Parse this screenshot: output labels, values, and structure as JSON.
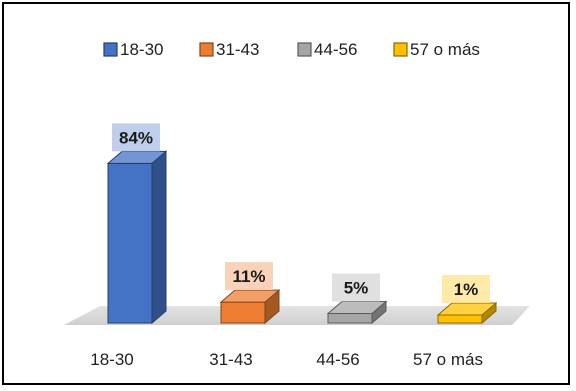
{
  "chart_data": {
    "type": "bar",
    "categories": [
      "18-30",
      "31-43",
      "44-56",
      "57 o más"
    ],
    "values": [
      84,
      11,
      5,
      1
    ],
    "data_labels": [
      "84%",
      "11%",
      "5%",
      "1%"
    ],
    "title": "",
    "xlabel": "",
    "ylabel": "",
    "ylim": [
      0,
      100
    ],
    "grid": false,
    "legend_position": "top",
    "colors": [
      "#4472C4",
      "#ED7D31",
      "#A5A5A5",
      "#FFC000"
    ],
    "series": [
      {
        "values": [
          84,
          11,
          5,
          1
        ]
      }
    ]
  }
}
